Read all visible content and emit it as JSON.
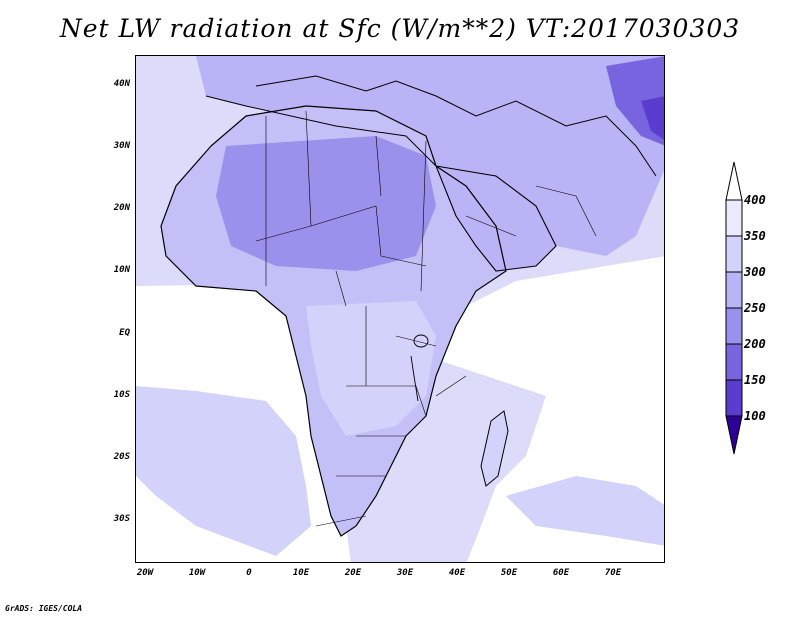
{
  "title": "Net LW radiation at Sfc (W/m**2) VT:2017030303",
  "credit": "GrADS: IGES/COLA",
  "map": {
    "region": "Africa and Arabian Peninsula",
    "lon_range": [
      -22,
      80
    ],
    "lat_range": [
      -37,
      45
    ],
    "lat_labels": [
      "40N",
      "30N",
      "20N",
      "10N",
      "EQ",
      "10S",
      "20S",
      "30S"
    ],
    "lon_labels": [
      "20W",
      "10W",
      "0",
      "10E",
      "20E",
      "30E",
      "40E",
      "50E",
      "60E",
      "70E"
    ]
  },
  "colorbar": {
    "labels": [
      "400",
      "350",
      "300",
      "250",
      "200",
      "150",
      "100"
    ],
    "colors": [
      "#ebebff",
      "#d2d2fa",
      "#b9b4f5",
      "#9a91ec",
      "#7864df",
      "#5a3ccf",
      "#3c14b8"
    ],
    "top_arrow_color": "#ffffff",
    "bottom_arrow_color": "#2d0096"
  }
}
